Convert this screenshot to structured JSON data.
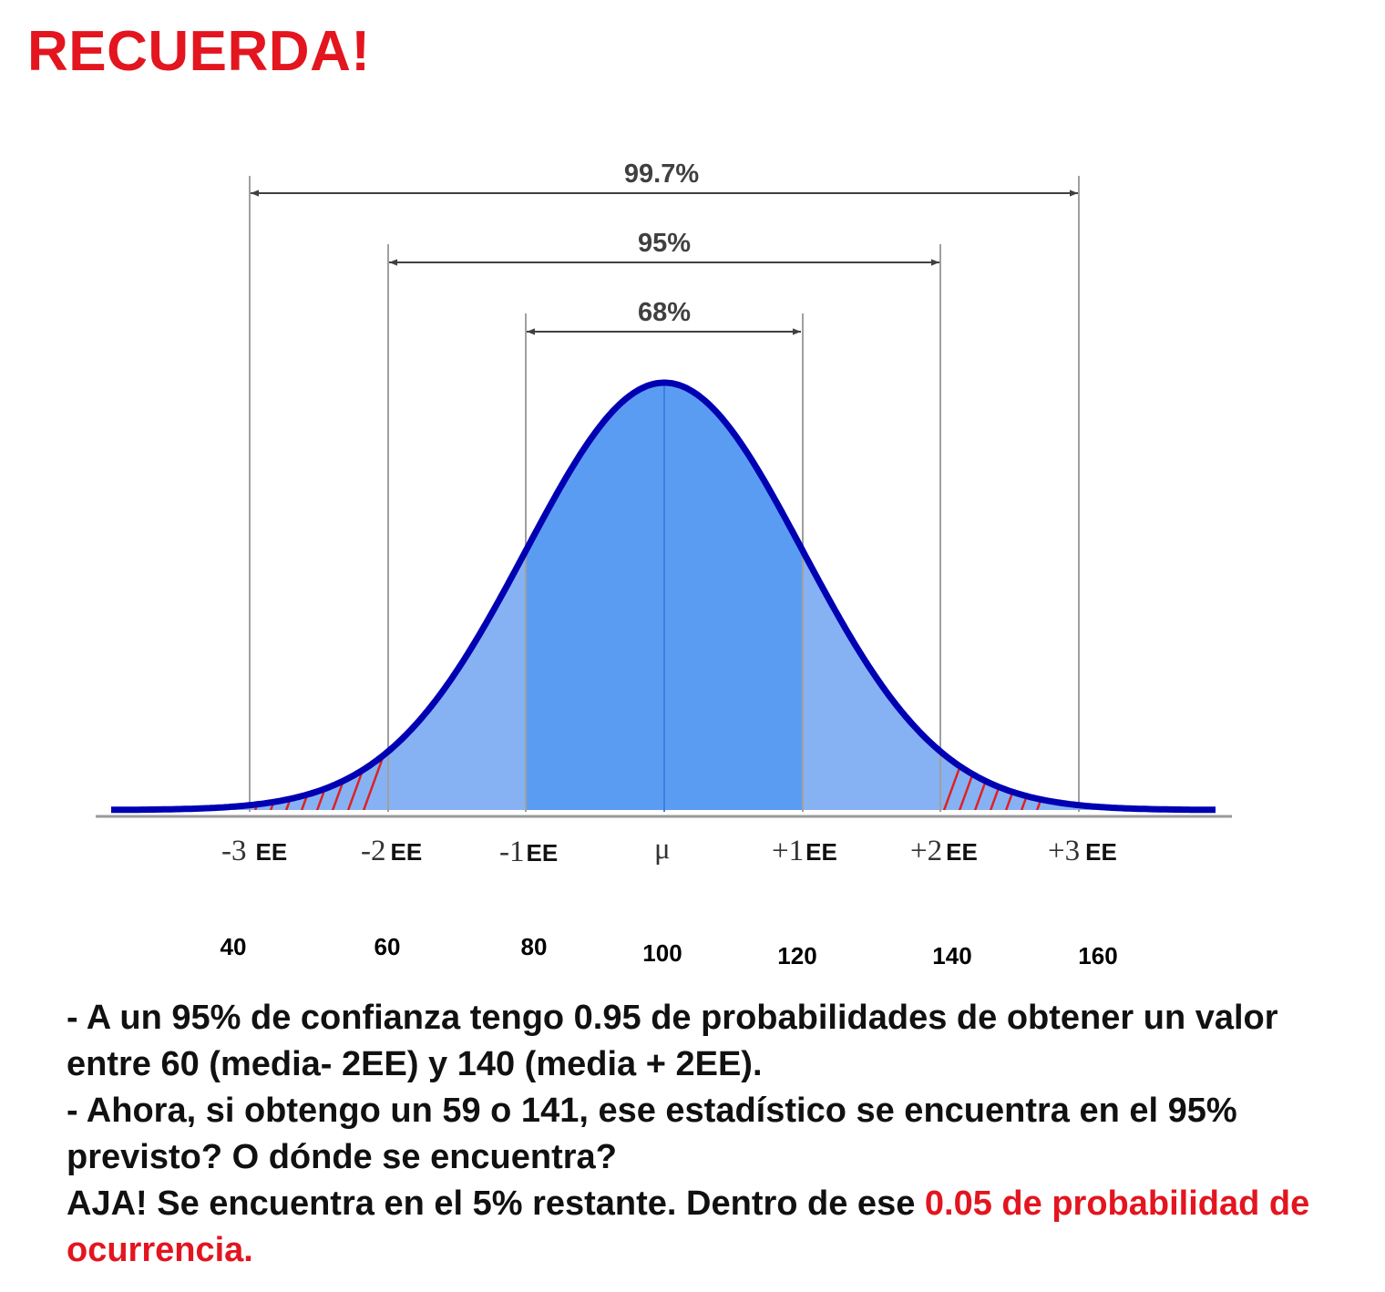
{
  "title": "RECUERDA!",
  "colors": {
    "title": "#e3151f",
    "highlight": "#e3151f",
    "curve": "#0000b3",
    "fill_center": "#5b9cf3",
    "fill_outer": "#86b2f4",
    "hatch": "#e02020",
    "guide_line": "#a0a0a0",
    "arrow": "#404040"
  },
  "diagram": {
    "intervals": [
      {
        "label": "99.7%",
        "from": "-3",
        "to": "+3"
      },
      {
        "label": "95%",
        "from": "-2",
        "to": "+2"
      },
      {
        "label": "68%",
        "from": "-1",
        "to": "+1"
      }
    ],
    "axis": [
      {
        "sd": "-3",
        "unit": "EE",
        "value": "40"
      },
      {
        "sd": "-2",
        "unit": "EE",
        "value": "60"
      },
      {
        "sd": "-1",
        "unit": "EE",
        "value": "80"
      },
      {
        "sd": "μ",
        "unit": "",
        "value": "100"
      },
      {
        "sd": "+1",
        "unit": "EE",
        "value": "120"
      },
      {
        "sd": "+2",
        "unit": "EE",
        "value": "140"
      },
      {
        "sd": "+3",
        "unit": "EE",
        "value": "160"
      }
    ],
    "hatched_tails": "beyond ±2 EE"
  },
  "notes": {
    "line1": "- A un 95% de confianza tengo 0.95 de probabilidades de obtener un valor entre 60 (media- 2EE) y 140 (media + 2EE).",
    "line2": "- Ahora, si obtengo un 59 o 141, ese estadístico se encuentra en el 95% previsto? O dónde se encuentra?",
    "line3_black": "AJA! Se encuentra en el 5% restante. Dentro de ese ",
    "line3_red": "0.05 de probabilidad de ocurrencia."
  }
}
